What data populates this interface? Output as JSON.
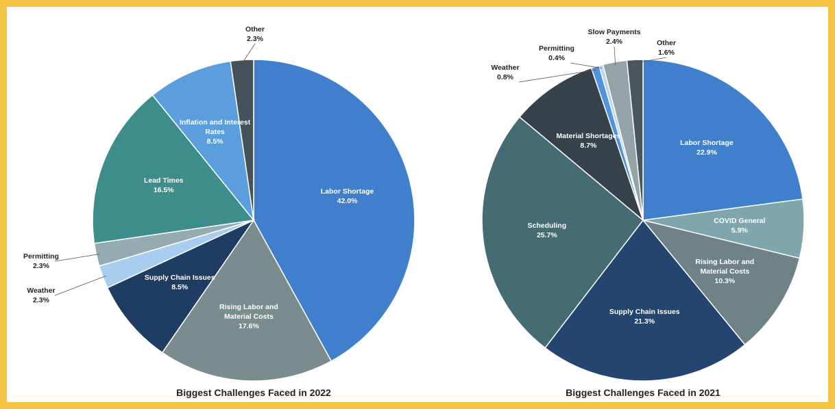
{
  "chart_data": [
    {
      "type": "pie",
      "title": "Biggest Challenges Faced in 2022",
      "categories": [
        "Labor Shortage",
        "Rising Labor and Material Costs",
        "Supply Chain Issues",
        "Weather",
        "Permitting",
        "Lead Times",
        "Inflation and Interest Rates",
        "Other"
      ],
      "values": [
        42.0,
        17.6,
        8.5,
        2.3,
        2.3,
        16.5,
        8.5,
        2.3
      ],
      "value_labels": [
        "42.0%",
        "17.6%",
        "8.5%",
        "2.3%",
        "2.3%",
        "16.5%",
        "8.5%",
        "2.3%"
      ],
      "colors": [
        "#3f7fcc",
        "#7b8c8e",
        "#1f3d63",
        "#a9cdef",
        "#94abb0",
        "#3e8d8d",
        "#5a9ede",
        "#46525a"
      ]
    },
    {
      "type": "pie",
      "title": "Biggest Challenges Faced in 2021",
      "categories": [
        "Labor Shortage",
        "COVID General",
        "Rising Labor and Material Costs",
        "Supply Chain Issues",
        "Scheduling",
        "Material Shortages",
        "Weather",
        "Permitting",
        "Slow Payments",
        "Other"
      ],
      "values": [
        22.9,
        5.9,
        10.3,
        21.3,
        25.7,
        8.7,
        0.8,
        0.4,
        2.4,
        1.6
      ],
      "value_labels": [
        "22.9%",
        "5.9%",
        "10.3%",
        "21.3%",
        "25.7%",
        "8.7%",
        "0.8%",
        "0.4%",
        "2.4%",
        "1.6%"
      ],
      "colors": [
        "#3f7fcc",
        "#7fa6ad",
        "#6f8286",
        "#24456f",
        "#456b73",
        "#36414a",
        "#4f94dc",
        "#b9d6ef",
        "#93a3a6",
        "#4a555c"
      ]
    }
  ]
}
